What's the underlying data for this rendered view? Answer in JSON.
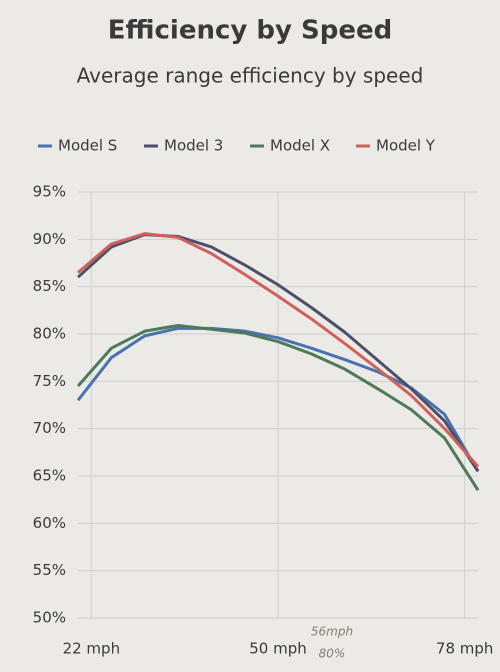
{
  "chart_data": {
    "type": "line",
    "title": "Efficiency by Speed",
    "subtitle": "Average range efficiency by speed",
    "x": [
      20,
      25,
      30,
      35,
      40,
      45,
      50,
      55,
      60,
      65,
      70,
      75,
      80
    ],
    "series": [
      {
        "name": "Model S",
        "color": "#4a72b0",
        "values": [
          73,
          77.5,
          79.8,
          80.6,
          80.6,
          80.3,
          79.6,
          78.5,
          77.3,
          76,
          74.3,
          71.5,
          65.5
        ]
      },
      {
        "name": "Model 3",
        "color": "#4a4f6a",
        "values": [
          86,
          89.2,
          90.5,
          90.3,
          89.2,
          87.3,
          85.2,
          82.8,
          80.2,
          77.2,
          74.2,
          70.8,
          65.5
        ]
      },
      {
        "name": "Model X",
        "color": "#4e7a5a",
        "values": [
          74.5,
          78.5,
          80.3,
          80.9,
          80.5,
          80.1,
          79.2,
          77.9,
          76.3,
          74.2,
          72,
          69,
          63.5
        ]
      },
      {
        "name": "Model Y",
        "color": "#d0605a",
        "values": [
          86.5,
          89.5,
          90.6,
          90.2,
          88.5,
          86.3,
          84,
          81.6,
          79,
          76.3,
          73.5,
          70,
          66
        ]
      }
    ],
    "xlim": [
      20,
      80
    ],
    "xticks": [
      {
        "value": 22,
        "label": "22 mph"
      },
      {
        "value": 50,
        "label": "50 mph"
      },
      {
        "value": 78,
        "label": "78 mph"
      }
    ],
    "ylim": [
      50,
      95
    ],
    "yticks": [
      {
        "value": 50,
        "label": "50%"
      },
      {
        "value": 55,
        "label": "55%"
      },
      {
        "value": 60,
        "label": "60%"
      },
      {
        "value": 65,
        "label": "65%"
      },
      {
        "value": 70,
        "label": "70%"
      },
      {
        "value": 75,
        "label": "75%"
      },
      {
        "value": 80,
        "label": "80%"
      },
      {
        "value": 85,
        "label": "85%"
      },
      {
        "value": 90,
        "label": "90%"
      },
      {
        "value": 95,
        "label": "95%"
      }
    ],
    "grid": true,
    "legend": "top",
    "annotations": [
      "56mph",
      "80%"
    ]
  }
}
